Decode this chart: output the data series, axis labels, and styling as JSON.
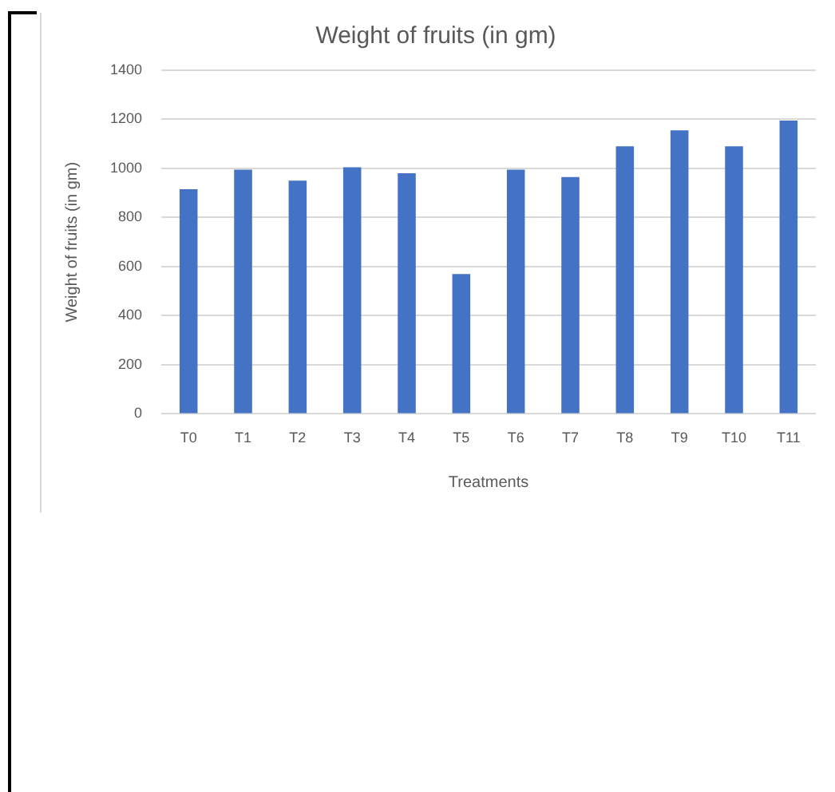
{
  "chart_data": {
    "type": "bar",
    "title": "Weight of fruits (in gm)",
    "xlabel": "Treatments",
    "ylabel": "Weight of fruits (in gm)",
    "categories": [
      "T0",
      "T1",
      "T2",
      "T3",
      "T4",
      "T5",
      "T6",
      "T7",
      "T8",
      "T9",
      "T10",
      "T11"
    ],
    "values": [
      915,
      995,
      950,
      1005,
      980,
      570,
      995,
      965,
      1090,
      1155,
      1090,
      1195
    ],
    "color": "#4472c4",
    "ylim": [
      0,
      1400
    ],
    "yticks": [
      0,
      200,
      400,
      600,
      800,
      1000,
      1200,
      1400
    ],
    "grid": "y"
  }
}
